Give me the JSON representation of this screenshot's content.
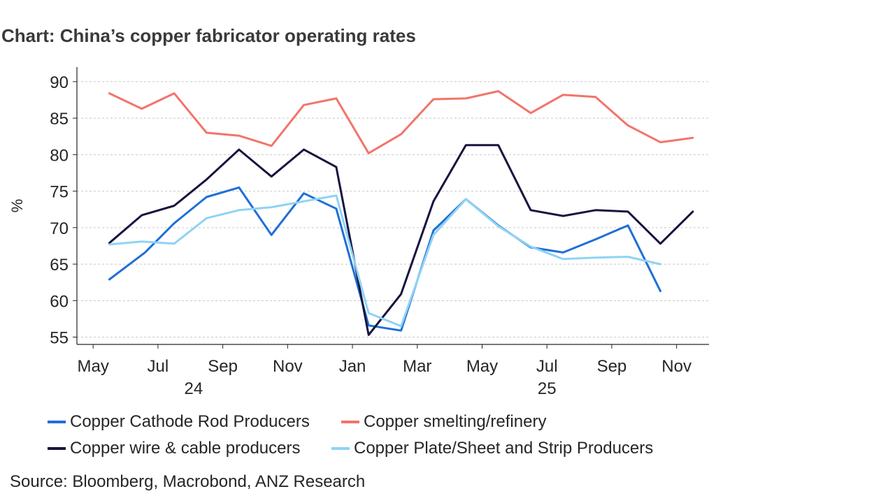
{
  "title": "Chart: China’s copper fabricator operating rates",
  "source": "Source:  Bloomberg, Macrobond, ANZ Research",
  "chart_data": {
    "type": "line",
    "title": "Chart: China’s copper fabricator operating rates",
    "xlabel": "",
    "ylabel": "%",
    "ylim": [
      54,
      92
    ],
    "yticks": [
      55,
      60,
      65,
      70,
      75,
      80,
      85,
      90
    ],
    "grid": true,
    "x_tick_labels": [
      "May",
      "Jul",
      "Sep",
      "Nov",
      "Jan",
      "Mar",
      "May",
      "Jul",
      "Sep",
      "Nov"
    ],
    "x_tick_positions": [
      0,
      2,
      4,
      6,
      8,
      10,
      12,
      14,
      16,
      18
    ],
    "year_labels": [
      {
        "label": "24",
        "pos": 3.1
      },
      {
        "label": "25",
        "pos": 14.0
      }
    ],
    "xlim": [
      -0.5,
      19.0
    ],
    "legend_placement": "bottom",
    "series": [
      {
        "name": "Copper Cathode Rod Producers",
        "color": "#1f6fd6",
        "x": [
          0.5,
          1.6,
          2.5,
          3.5,
          4.5,
          5.5,
          6.5,
          7.5,
          8.5,
          9.5,
          10.5,
          11.5,
          12.5,
          13.5,
          14.5,
          15.5,
          16.5,
          17.5
        ],
        "values": [
          62.9,
          66.6,
          70.6,
          74.2,
          75.5,
          69.0,
          74.7,
          72.6,
          56.6,
          55.9,
          69.6,
          73.9,
          70.3,
          67.3,
          66.6,
          68.4,
          70.3,
          61.3
        ]
      },
      {
        "name": "Copper smelting/refinery",
        "color": "#f2746b",
        "x": [
          0.5,
          1.5,
          2.5,
          3.5,
          4.5,
          5.5,
          6.5,
          7.5,
          8.5,
          9.5,
          10.5,
          11.5,
          12.5,
          13.5,
          14.5,
          15.5,
          16.5,
          17.5,
          18.5
        ],
        "values": [
          88.4,
          86.3,
          88.4,
          83.0,
          82.6,
          81.2,
          86.8,
          87.7,
          80.2,
          82.8,
          87.6,
          87.7,
          88.7,
          85.7,
          88.2,
          87.9,
          84.0,
          81.7,
          82.3
        ]
      },
      {
        "name": "Copper wire & cable producers",
        "color": "#17143f",
        "x": [
          0.5,
          1.5,
          2.5,
          3.5,
          4.5,
          5.5,
          6.5,
          7.5,
          8.5,
          9.5,
          10.5,
          11.5,
          12.5,
          13.5,
          14.5,
          15.5,
          16.5,
          17.5,
          18.5
        ],
        "values": [
          67.9,
          71.7,
          73.0,
          76.6,
          80.7,
          77.0,
          80.7,
          78.3,
          55.3,
          60.9,
          73.6,
          81.3,
          81.3,
          72.4,
          71.6,
          72.4,
          72.2,
          67.8,
          72.2
        ]
      },
      {
        "name": "Copper Plate/Sheet and Strip Producers",
        "color": "#8fd3f5",
        "x": [
          0.5,
          1.5,
          2.5,
          3.5,
          4.5,
          5.5,
          6.5,
          7.5,
          8.5,
          9.5,
          10.5,
          11.5,
          12.5,
          13.5,
          14.5,
          15.5,
          16.5,
          17.5
        ],
        "values": [
          67.7,
          68.1,
          67.8,
          71.3,
          72.4,
          72.8,
          73.6,
          74.4,
          58.3,
          56.5,
          69.0,
          73.9,
          70.2,
          67.4,
          65.7,
          65.9,
          66.0,
          65.0
        ]
      }
    ]
  }
}
